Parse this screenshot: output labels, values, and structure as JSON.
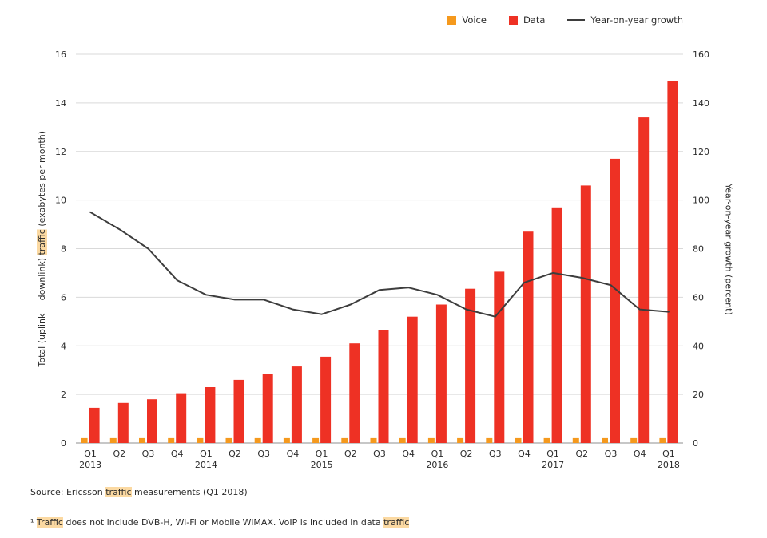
{
  "colors": {
    "grid": "#d9d9d9",
    "axis": "#8f8f8f",
    "text": "#2b2b2b",
    "highlight": "#fbd9a2"
  },
  "chart_data": {
    "type": "bar",
    "categories": [
      "Q1",
      "Q2",
      "Q3",
      "Q4",
      "Q1",
      "Q2",
      "Q3",
      "Q4",
      "Q1",
      "Q2",
      "Q3",
      "Q4",
      "Q1",
      "Q2",
      "Q3",
      "Q4",
      "Q1",
      "Q2",
      "Q3",
      "Q4",
      "Q1"
    ],
    "years": [
      {
        "label": "2013",
        "quarter_index": 0
      },
      {
        "label": "2014",
        "quarter_index": 4
      },
      {
        "label": "2015",
        "quarter_index": 8
      },
      {
        "label": "2016",
        "quarter_index": 12
      },
      {
        "label": "2017",
        "quarter_index": 16
      },
      {
        "label": "2018",
        "quarter_index": 20
      }
    ],
    "series": [
      {
        "name": "Voice",
        "type": "bar",
        "axis": "left",
        "color": "#f5991d",
        "values": [
          0.2,
          0.2,
          0.2,
          0.2,
          0.2,
          0.2,
          0.2,
          0.2,
          0.2,
          0.2,
          0.2,
          0.2,
          0.2,
          0.2,
          0.2,
          0.2,
          0.2,
          0.2,
          0.2,
          0.2,
          0.2
        ]
      },
      {
        "name": "Data",
        "type": "bar",
        "axis": "left",
        "color": "#ee3124",
        "values": [
          1.45,
          1.65,
          1.8,
          2.05,
          2.3,
          2.6,
          2.85,
          3.15,
          3.55,
          4.1,
          4.65,
          5.2,
          5.7,
          6.35,
          7.05,
          8.7,
          9.7,
          10.6,
          11.7,
          13.4,
          14.9
        ]
      },
      {
        "name": "Year-on-year growth",
        "type": "line",
        "axis": "right",
        "color": "#3d3d3d",
        "values": [
          95,
          88,
          80,
          67,
          61,
          59,
          59,
          55,
          53,
          57,
          63,
          64,
          61,
          55,
          52,
          66,
          70,
          68,
          65,
          55,
          54
        ]
      }
    ],
    "left_axis": {
      "min": 0,
      "max": 16,
      "step": 2,
      "title_segments": [
        {
          "text": "Total (uplink + downlink) ",
          "highlight": false
        },
        {
          "text": "traffic",
          "highlight": true
        },
        {
          "text": " (exabytes per month)",
          "highlight": false
        }
      ]
    },
    "right_axis": {
      "min": 0,
      "max": 160,
      "step": 20,
      "label": "Year-on-year growth (percent)"
    },
    "grid": true,
    "legend_position": "top-right"
  },
  "source_segments": [
    {
      "text": "Source: Ericsson ",
      "highlight": false
    },
    {
      "text": "traffic",
      "highlight": true
    },
    {
      "text": " measurements (Q1 2018)",
      "highlight": false
    }
  ],
  "footnote_segments": [
    {
      "text": "¹ ",
      "highlight": false
    },
    {
      "text": "Traffic",
      "highlight": true
    },
    {
      "text": " does not include DVB-H, Wi-Fi or Mobile WiMAX. VoIP is included in data ",
      "highlight": false
    },
    {
      "text": "traffic",
      "highlight": true
    }
  ]
}
